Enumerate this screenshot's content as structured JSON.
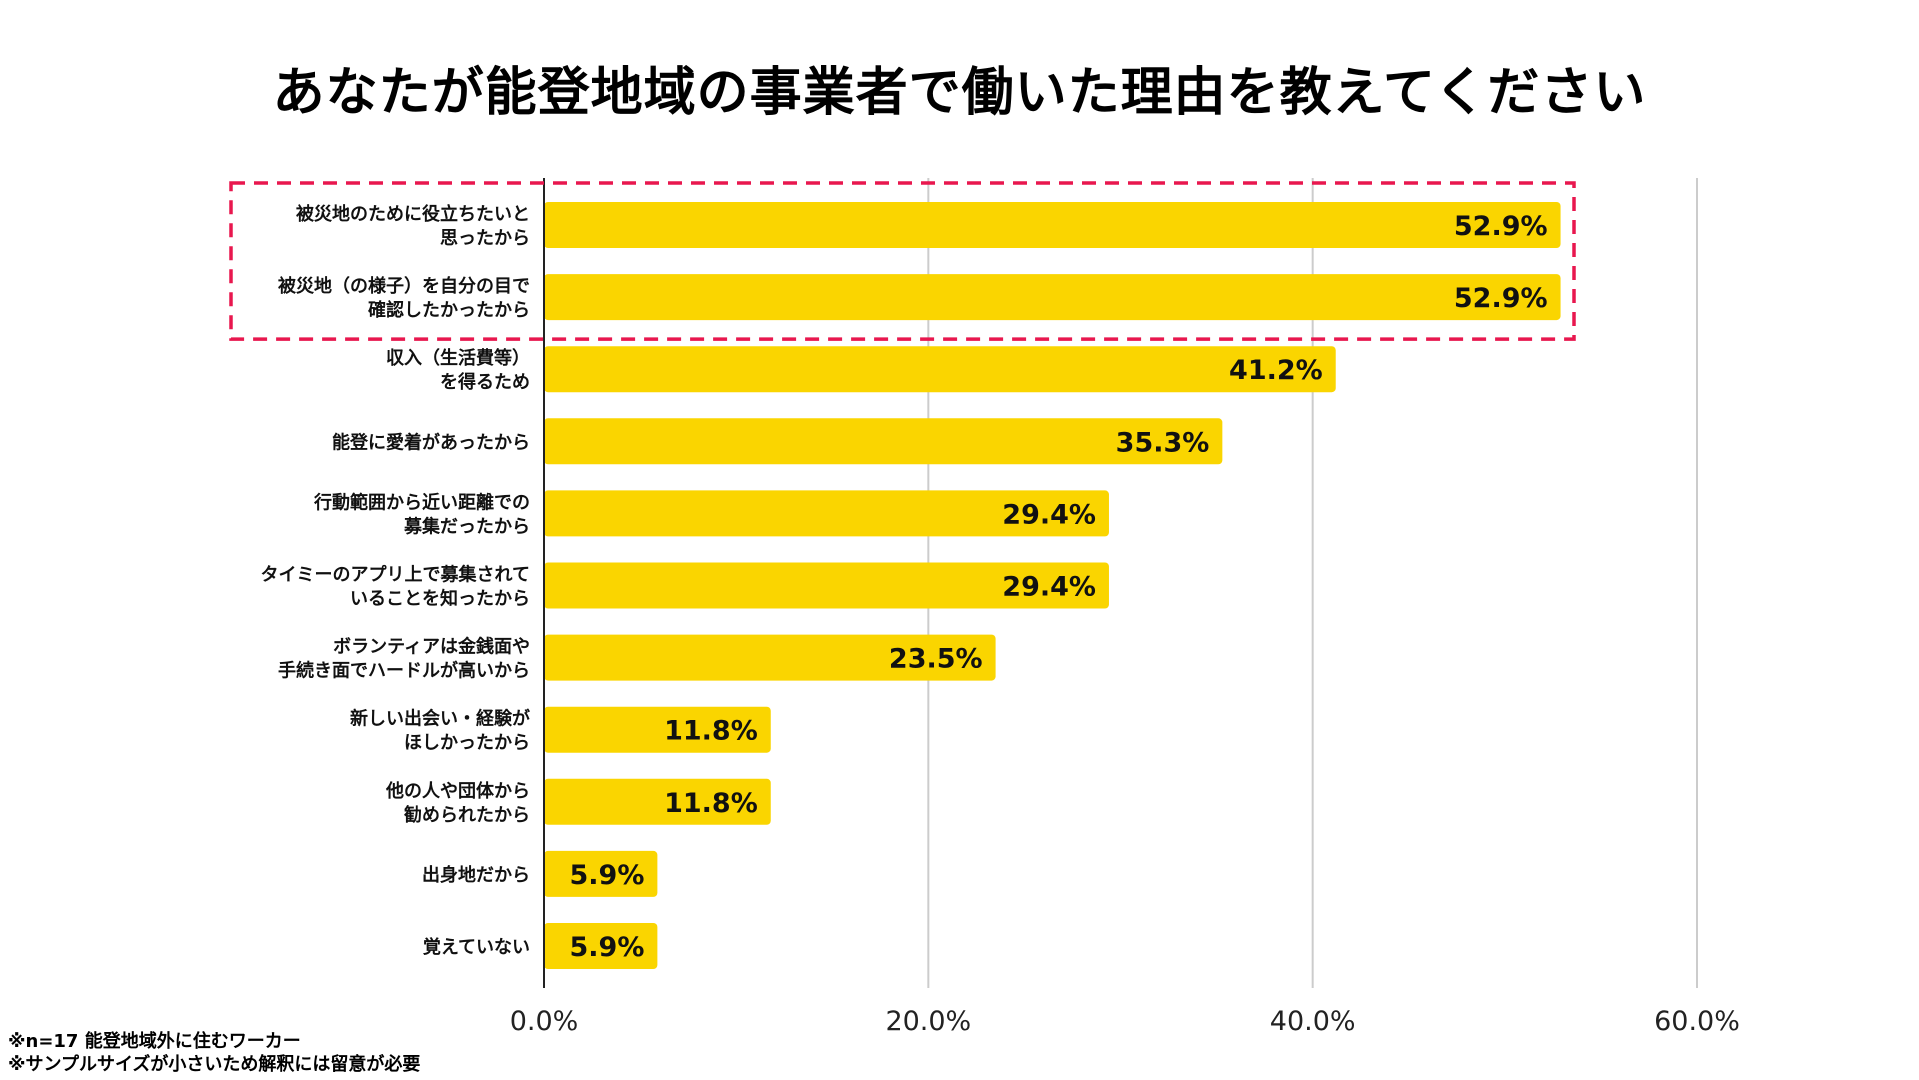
{
  "title": "あなたが能登地域の事業者で働いた理由を教えてください",
  "notes": [
    "※n=17 能登地域外に住むワーカー",
    "※サンプルサイズが小さいため解釈には留意が必要"
  ],
  "colors": {
    "bar": "#FAD500",
    "grid": "#CCCCCC",
    "axis": "#222222",
    "highlight": "#E8174E"
  },
  "chart_data": {
    "type": "bar",
    "orientation": "horizontal",
    "categories": [
      [
        "被災地のために役立ちたいと",
        "思ったから"
      ],
      [
        "被災地（の様子）を自分の目で",
        "確認したかったから"
      ],
      [
        "収入（生活費等）",
        "を得るため"
      ],
      [
        "能登に愛着があったから"
      ],
      [
        "行動範囲から近い距離での",
        "募集だったから"
      ],
      [
        "タイミーのアプリ上で募集されて",
        "いることを知ったから"
      ],
      [
        "ボランティアは金銭面や",
        "手続き面でハードルが高いから"
      ],
      [
        "新しい出会い・経験が",
        "ほしかったから"
      ],
      [
        "他の人や団体から",
        "勧められたから"
      ],
      [
        "出身地だから"
      ],
      [
        "覚えていない"
      ]
    ],
    "values": [
      52.9,
      52.9,
      41.2,
      35.3,
      29.4,
      29.4,
      23.5,
      11.8,
      11.8,
      5.9,
      5.9
    ],
    "value_labels": [
      "52.9%",
      "52.9%",
      "41.2%",
      "35.3%",
      "29.4%",
      "29.4%",
      "23.5%",
      "11.8%",
      "11.8%",
      "5.9%",
      "5.9%"
    ],
    "xlim": [
      0,
      60
    ],
    "xticks": [
      0,
      20,
      40,
      60
    ],
    "xtick_labels": [
      "0.0%",
      "20.0%",
      "40.0%",
      "60.0%"
    ],
    "highlighted_categories": [
      0,
      1
    ],
    "grid": true
  }
}
